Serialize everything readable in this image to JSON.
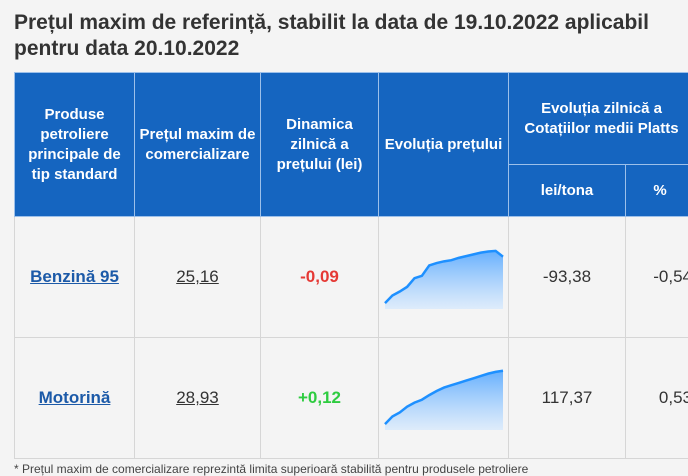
{
  "title": "Prețul maxim de referință, stabilit la data de 19.10.2022 aplicabil pentru data 20.10.2022",
  "headers": {
    "product": "Produse petroliere principale de tip standard",
    "max_price": "Prețul maxim de comercializare",
    "dynamics": "Dinamica zilnică a prețului (lei)",
    "evolution": "Evoluția prețului",
    "platts": "Evoluția zilnică a Cotațiilor medii Platts",
    "lei_tona": "lei/tona",
    "percent": "%"
  },
  "rows": [
    {
      "product": "Benzină 95",
      "price": "25,16",
      "dynamics": "-0,09",
      "dynamics_color": "#e53935",
      "lei_tona": "-93,38",
      "percent": "-0,54",
      "trend": [
        0.05,
        0.18,
        0.25,
        0.33,
        0.48,
        0.52,
        0.7,
        0.74,
        0.77,
        0.79,
        0.83,
        0.86,
        0.89,
        0.92,
        0.94,
        0.95,
        0.85
      ]
    },
    {
      "product": "Motorină",
      "price": "28,93",
      "dynamics": "+0,12",
      "dynamics_color": "#2ecc40",
      "lei_tona": "117,37",
      "percent": "0,53",
      "trend": [
        0.05,
        0.18,
        0.25,
        0.35,
        0.42,
        0.47,
        0.55,
        0.62,
        0.68,
        0.72,
        0.76,
        0.8,
        0.84,
        0.88,
        0.92,
        0.95,
        0.97
      ]
    }
  ],
  "footnote": "* Prețul maxim de comercializare reprezintă limita superioară stabilită pentru produsele petroliere"
}
